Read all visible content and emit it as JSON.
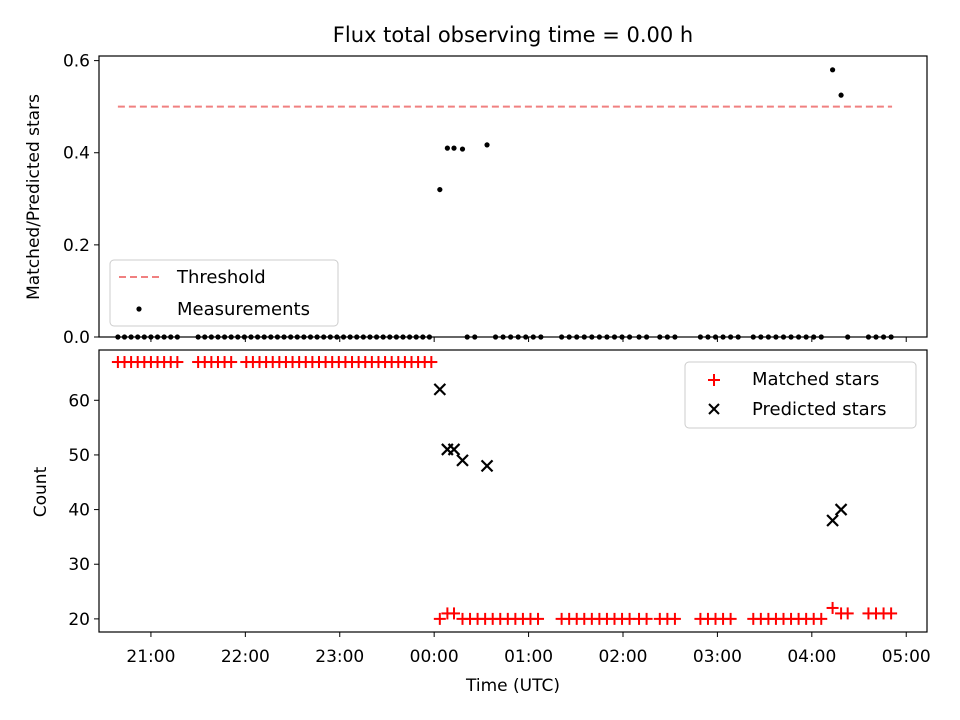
{
  "chart_data": [
    {
      "type": "scatter",
      "title": "Flux total observing time = 0.00 h",
      "xlabel": "",
      "ylabel": "Matched/Predicted stars",
      "xlim": [
        -3.55,
        5.22
      ],
      "ylim": [
        0,
        0.61
      ],
      "yticks": [
        0.0,
        0.2,
        0.4,
        0.6
      ],
      "ytick_labels": [
        "0.0",
        "0.2",
        "0.4",
        "0.6"
      ],
      "xticks": [
        -3,
        -2,
        -1,
        0,
        1,
        2,
        3,
        4,
        5
      ],
      "legend": {
        "placement": "lower-left",
        "entries": [
          "Threshold",
          "Measurements"
        ]
      },
      "threshold": {
        "name": "Threshold",
        "value": 0.5,
        "x_range": [
          -3.35,
          4.85
        ],
        "color": "#f08080"
      },
      "measurements": {
        "name": "Measurements",
        "color": "#000000",
        "zero_x": [
          -3.35,
          -3.28,
          -3.21,
          -3.14,
          -3.07,
          -3.0,
          -2.93,
          -2.86,
          -2.79,
          -2.72,
          -2.5,
          -2.43,
          -2.36,
          -2.29,
          -2.22,
          -2.15,
          -2.08,
          -2.01,
          -1.94,
          -1.87,
          -1.8,
          -1.73,
          -1.66,
          -1.59,
          -1.52,
          -1.45,
          -1.38,
          -1.31,
          -1.24,
          -1.17,
          -1.1,
          -1.03,
          -0.96,
          -0.89,
          -0.82,
          -0.75,
          -0.68,
          -0.61,
          -0.54,
          -0.47,
          -0.4,
          -0.33,
          -0.26,
          -0.19,
          -0.12,
          -0.05,
          0.35,
          0.43,
          0.65,
          0.73,
          0.81,
          0.89,
          0.97,
          1.05,
          1.13,
          1.35,
          1.43,
          1.51,
          1.59,
          1.67,
          1.75,
          1.83,
          1.91,
          1.99,
          2.07,
          2.17,
          2.25,
          2.39,
          2.47,
          2.55,
          2.82,
          2.9,
          2.98,
          3.06,
          3.14,
          3.22,
          3.38,
          3.46,
          3.54,
          3.62,
          3.7,
          3.78,
          3.86,
          3.94,
          4.02,
          4.1,
          4.38,
          4.6,
          4.68,
          4.76,
          4.84
        ],
        "points": [
          {
            "x": 0.06,
            "y": 0.32
          },
          {
            "x": 0.14,
            "y": 0.41
          },
          {
            "x": 0.21,
            "y": 0.41
          },
          {
            "x": 0.3,
            "y": 0.408
          },
          {
            "x": 0.56,
            "y": 0.417
          },
          {
            "x": 4.22,
            "y": 0.58
          },
          {
            "x": 4.31,
            "y": 0.525
          }
        ]
      }
    },
    {
      "type": "scatter",
      "title": "",
      "xlabel": "Time (UTC)",
      "ylabel": "Count",
      "xlim": [
        -3.55,
        5.22
      ],
      "ylim": [
        17.6,
        69.2
      ],
      "yticks": [
        20,
        30,
        40,
        50,
        60
      ],
      "ytick_labels": [
        "20",
        "30",
        "40",
        "50",
        "60"
      ],
      "xticks": [
        -3,
        -2,
        -1,
        0,
        1,
        2,
        3,
        4,
        5
      ],
      "xtick_labels": [
        "21:00",
        "22:00",
        "23:00",
        "00:00",
        "01:00",
        "02:00",
        "03:00",
        "04:00",
        "05:00"
      ],
      "legend": {
        "placement": "top-right",
        "entries": [
          "Matched stars",
          "Predicted stars"
        ]
      },
      "series": [
        {
          "name": "Matched stars",
          "marker": "+",
          "color": "#ff0000",
          "points": [
            {
              "x": -3.35,
              "y": 67
            },
            {
              "x": -3.28,
              "y": 67
            },
            {
              "x": -3.21,
              "y": 67
            },
            {
              "x": -3.14,
              "y": 67
            },
            {
              "x": -3.07,
              "y": 67
            },
            {
              "x": -3.0,
              "y": 67
            },
            {
              "x": -2.93,
              "y": 67
            },
            {
              "x": -2.86,
              "y": 67
            },
            {
              "x": -2.79,
              "y": 67
            },
            {
              "x": -2.72,
              "y": 67
            },
            {
              "x": -2.5,
              "y": 67
            },
            {
              "x": -2.43,
              "y": 67
            },
            {
              "x": -2.36,
              "y": 67
            },
            {
              "x": -2.29,
              "y": 67
            },
            {
              "x": -2.22,
              "y": 67
            },
            {
              "x": -2.15,
              "y": 67
            },
            {
              "x": -1.99,
              "y": 67
            },
            {
              "x": -1.92,
              "y": 67
            },
            {
              "x": -1.85,
              "y": 67
            },
            {
              "x": -1.78,
              "y": 67
            },
            {
              "x": -1.71,
              "y": 67
            },
            {
              "x": -1.64,
              "y": 67
            },
            {
              "x": -1.57,
              "y": 67
            },
            {
              "x": -1.5,
              "y": 67
            },
            {
              "x": -1.43,
              "y": 67
            },
            {
              "x": -1.36,
              "y": 67
            },
            {
              "x": -1.29,
              "y": 67
            },
            {
              "x": -1.22,
              "y": 67
            },
            {
              "x": -1.15,
              "y": 67
            },
            {
              "x": -1.08,
              "y": 67
            },
            {
              "x": -1.01,
              "y": 67
            },
            {
              "x": -0.94,
              "y": 67
            },
            {
              "x": -0.87,
              "y": 67
            },
            {
              "x": -0.8,
              "y": 67
            },
            {
              "x": -0.73,
              "y": 67
            },
            {
              "x": -0.66,
              "y": 67
            },
            {
              "x": -0.59,
              "y": 67
            },
            {
              "x": -0.52,
              "y": 67
            },
            {
              "x": -0.45,
              "y": 67
            },
            {
              "x": -0.38,
              "y": 67
            },
            {
              "x": -0.31,
              "y": 67
            },
            {
              "x": -0.24,
              "y": 67
            },
            {
              "x": -0.17,
              "y": 67
            },
            {
              "x": -0.1,
              "y": 67
            },
            {
              "x": -0.03,
              "y": 67
            },
            {
              "x": 0.06,
              "y": 20
            },
            {
              "x": 0.14,
              "y": 21
            },
            {
              "x": 0.21,
              "y": 21
            },
            {
              "x": 0.3,
              "y": 20
            },
            {
              "x": 0.38,
              "y": 20
            },
            {
              "x": 0.46,
              "y": 20
            },
            {
              "x": 0.54,
              "y": 20
            },
            {
              "x": 0.62,
              "y": 20
            },
            {
              "x": 0.7,
              "y": 20
            },
            {
              "x": 0.78,
              "y": 20
            },
            {
              "x": 0.86,
              "y": 20
            },
            {
              "x": 0.94,
              "y": 20
            },
            {
              "x": 1.02,
              "y": 20
            },
            {
              "x": 1.1,
              "y": 20
            },
            {
              "x": 1.35,
              "y": 20
            },
            {
              "x": 1.43,
              "y": 20
            },
            {
              "x": 1.51,
              "y": 20
            },
            {
              "x": 1.59,
              "y": 20
            },
            {
              "x": 1.67,
              "y": 20
            },
            {
              "x": 1.75,
              "y": 20
            },
            {
              "x": 1.83,
              "y": 20
            },
            {
              "x": 1.91,
              "y": 20
            },
            {
              "x": 1.99,
              "y": 20
            },
            {
              "x": 2.07,
              "y": 20
            },
            {
              "x": 2.17,
              "y": 20
            },
            {
              "x": 2.25,
              "y": 20
            },
            {
              "x": 2.39,
              "y": 20
            },
            {
              "x": 2.47,
              "y": 20
            },
            {
              "x": 2.55,
              "y": 20
            },
            {
              "x": 2.82,
              "y": 20
            },
            {
              "x": 2.9,
              "y": 20
            },
            {
              "x": 2.98,
              "y": 20
            },
            {
              "x": 3.06,
              "y": 20
            },
            {
              "x": 3.14,
              "y": 20
            },
            {
              "x": 3.38,
              "y": 20
            },
            {
              "x": 3.46,
              "y": 20
            },
            {
              "x": 3.54,
              "y": 20
            },
            {
              "x": 3.62,
              "y": 20
            },
            {
              "x": 3.7,
              "y": 20
            },
            {
              "x": 3.78,
              "y": 20
            },
            {
              "x": 3.86,
              "y": 20
            },
            {
              "x": 3.94,
              "y": 20
            },
            {
              "x": 4.02,
              "y": 20
            },
            {
              "x": 4.1,
              "y": 20
            },
            {
              "x": 4.22,
              "y": 22
            },
            {
              "x": 4.31,
              "y": 21
            },
            {
              "x": 4.38,
              "y": 21
            },
            {
              "x": 4.6,
              "y": 21
            },
            {
              "x": 4.68,
              "y": 21
            },
            {
              "x": 4.76,
              "y": 21
            },
            {
              "x": 4.84,
              "y": 21
            }
          ]
        },
        {
          "name": "Predicted stars",
          "marker": "x",
          "color": "#000000",
          "points": [
            {
              "x": 0.06,
              "y": 62
            },
            {
              "x": 0.14,
              "y": 51
            },
            {
              "x": 0.21,
              "y": 51
            },
            {
              "x": 0.3,
              "y": 49
            },
            {
              "x": 0.56,
              "y": 48
            },
            {
              "x": 4.22,
              "y": 38
            },
            {
              "x": 4.31,
              "y": 40
            }
          ]
        }
      ]
    }
  ]
}
